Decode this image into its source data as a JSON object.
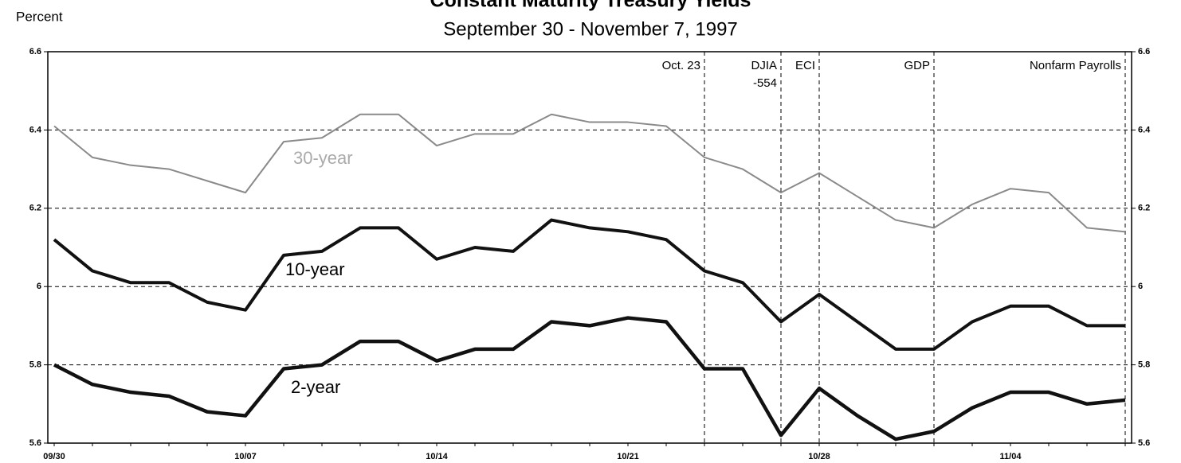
{
  "chart_data": {
    "type": "line",
    "title": "Constant Maturity Treasury Yields",
    "subtitle": "September 30 - November 7, 1997",
    "y_label": "Percent",
    "categories": [
      "09/30",
      null,
      null,
      null,
      null,
      "10/07",
      null,
      null,
      null,
      null,
      "10/14",
      null,
      null,
      null,
      null,
      "10/21",
      null,
      null,
      null,
      null,
      "10/28",
      null,
      null,
      null,
      null,
      "11/04",
      null,
      null,
      null
    ],
    "series": [
      {
        "name": "30-year",
        "color": "#8a8a8a",
        "values": [
          6.41,
          6.33,
          6.31,
          6.3,
          6.27,
          6.24,
          6.37,
          6.38,
          6.44,
          6.44,
          6.36,
          6.39,
          6.39,
          6.44,
          6.42,
          6.42,
          6.41,
          6.33,
          6.3,
          6.24,
          6.29,
          6.23,
          6.17,
          6.15,
          6.21,
          6.25,
          6.24,
          6.15,
          6.14
        ]
      },
      {
        "name": "10-year",
        "color": "#111111",
        "values": [
          6.12,
          6.04,
          6.01,
          6.01,
          5.96,
          5.94,
          6.08,
          6.09,
          6.15,
          6.15,
          6.07,
          6.1,
          6.09,
          6.17,
          6.15,
          6.14,
          6.12,
          6.04,
          6.01,
          5.91,
          5.98,
          5.91,
          5.84,
          5.84,
          5.91,
          5.95,
          5.95,
          5.9,
          5.9
        ]
      },
      {
        "name": "2-year",
        "color": "#111111",
        "values": [
          5.8,
          5.75,
          5.73,
          5.72,
          5.68,
          5.67,
          5.79,
          5.8,
          5.86,
          5.86,
          5.81,
          5.84,
          5.84,
          5.91,
          5.9,
          5.92,
          5.91,
          5.79,
          5.79,
          5.62,
          5.74,
          5.67,
          5.61,
          5.63,
          5.69,
          5.73,
          5.73,
          5.7,
          5.71
        ]
      }
    ],
    "annotations": [
      {
        "index": 17,
        "lines": [
          "Oct. 23"
        ]
      },
      {
        "index": 19,
        "lines": [
          "DJIA",
          "-554"
        ]
      },
      {
        "index": 20,
        "lines": [
          "ECI"
        ]
      },
      {
        "index": 23,
        "lines": [
          "GDP"
        ]
      },
      {
        "index": 28,
        "lines": [
          "Nonfarm Payrolls"
        ]
      }
    ],
    "ylim": [
      5.6,
      6.6
    ],
    "yticks": [
      5.6,
      5.8,
      6,
      6.2,
      6.4,
      6.6
    ],
    "grid": true
  }
}
